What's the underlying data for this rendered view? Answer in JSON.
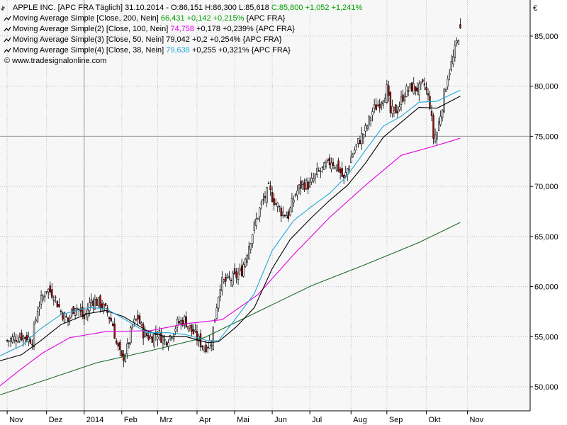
{
  "chart_data": {
    "type": "candlestick",
    "currency_label": "€",
    "grid": true,
    "legend_position": "top-left",
    "header": [
      {
        "text": "APPLE INC. [APC FRA  Täglich] 31.10.2014 - O:86,151 H:86,300 L:85,618 ",
        "accent": "C:85,800 +1,052 +1,241%",
        "accent_color": "#00a000",
        "tail": ""
      },
      {
        "text": "Moving Average Simple [Close, 200, Nein] ",
        "accent": "66,431 +0,142 +0,215%",
        "accent_color": "#00a000",
        "tail": " {APC FRA}"
      },
      {
        "text": "Moving Average Simple(2) [Close, 100, Nein] ",
        "accent": "74,758",
        "accent_color": "#e000e0",
        "tail": " +0,178 +0,239% {APC FRA}"
      },
      {
        "text": "Moving Average Simple(3) [Close, 50, Nein] ",
        "accent": "79,042",
        "accent_color": "#000000",
        "tail": " +0,2 +0,254% {APC FRA}"
      },
      {
        "text": "Moving Average Simple(4) [Close, 38, Nein] ",
        "accent": "79,638",
        "accent_color": "#20a8d8",
        "tail": " +0,255 +0,321% {APC FRA}"
      }
    ],
    "source": "© www.tradesignalonline.com",
    "y_axis": {
      "min": 47.6,
      "max": 88.6,
      "ticks": [
        50,
        55,
        60,
        65,
        70,
        75,
        80,
        85
      ],
      "tick_labels": [
        "50,000",
        "55,000",
        "60,000",
        "65,000",
        "70,000",
        "75,000",
        "80,000",
        "85,000"
      ]
    },
    "x_axis": {
      "range": [
        -4,
        292
      ],
      "ticks": [
        {
          "label": "Nov",
          "x": 0
        },
        {
          "label": "Dez",
          "x": 22
        },
        {
          "label": "2014",
          "x": 43
        },
        {
          "label": "Feb",
          "x": 64
        },
        {
          "label": "Mrz",
          "x": 84
        },
        {
          "label": "Apr",
          "x": 106
        },
        {
          "label": "Mai",
          "x": 127
        },
        {
          "label": "Jun",
          "x": 148
        },
        {
          "label": "Jul",
          "x": 169
        },
        {
          "label": "Aug",
          "x": 192
        },
        {
          "label": "Sep",
          "x": 212
        },
        {
          "label": "Okt",
          "x": 234
        },
        {
          "label": "Nov",
          "x": 257
        }
      ]
    },
    "price_anchors": [
      [
        0,
        54.6
      ],
      [
        8,
        55.1
      ],
      [
        14,
        54.7
      ],
      [
        17,
        57.8
      ],
      [
        22,
        59.8
      ],
      [
        26,
        59.2
      ],
      [
        30,
        57.5
      ],
      [
        34,
        56.6
      ],
      [
        38,
        58.2
      ],
      [
        43,
        56.8
      ],
      [
        47,
        58.7
      ],
      [
        52,
        58.3
      ],
      [
        56,
        57.4
      ],
      [
        59,
        56.2
      ],
      [
        61,
        54.3
      ],
      [
        64,
        52.7
      ],
      [
        67,
        53.8
      ],
      [
        70,
        56.1
      ],
      [
        73,
        56.9
      ],
      [
        76,
        55.4
      ],
      [
        80,
        54.9
      ],
      [
        84,
        55.4
      ],
      [
        88,
        54.6
      ],
      [
        91,
        55.1
      ],
      [
        95,
        56.3
      ],
      [
        99,
        56.7
      ],
      [
        103,
        55.6
      ],
      [
        107,
        54.6
      ],
      [
        110,
        53.9
      ],
      [
        114,
        54.6
      ],
      [
        117,
        58.2
      ],
      [
        119,
        60.3
      ],
      [
        123,
        60.6
      ],
      [
        127,
        60.9
      ],
      [
        131,
        61.6
      ],
      [
        135,
        64.2
      ],
      [
        139,
        66.6
      ],
      [
        142,
        68.2
      ],
      [
        146,
        69.7
      ],
      [
        149,
        68.6
      ],
      [
        153,
        67.5
      ],
      [
        157,
        67.1
      ],
      [
        161,
        69.3
      ],
      [
        165,
        70.3
      ],
      [
        169,
        70.1
      ],
      [
        173,
        71.3
      ],
      [
        177,
        71.8
      ],
      [
        181,
        72.6
      ],
      [
        185,
        71.8
      ],
      [
        188,
        70.6
      ],
      [
        192,
        72.9
      ],
      [
        196,
        74.4
      ],
      [
        200,
        75.6
      ],
      [
        204,
        77.5
      ],
      [
        208,
        78.4
      ],
      [
        212,
        79.7
      ],
      [
        214,
        77.3
      ],
      [
        218,
        77.7
      ],
      [
        222,
        79.4
      ],
      [
        226,
        79.9
      ],
      [
        230,
        79.7
      ],
      [
        233,
        80.1
      ],
      [
        236,
        78.2
      ],
      [
        238,
        74.9
      ],
      [
        240,
        75.4
      ],
      [
        243,
        78.2
      ],
      [
        246,
        81.1
      ],
      [
        249,
        82.8
      ],
      [
        251,
        84.3
      ],
      [
        253,
        85.8
      ]
    ],
    "series": [
      {
        "name": "Moving Average Simple [Close, 200, Nein]",
        "color": "#1a6b2a",
        "points": [
          [
            -4,
            49.2
          ],
          [
            20,
            50.6
          ],
          [
            50,
            52.4
          ],
          [
            80,
            53.6
          ],
          [
            110,
            54.9
          ],
          [
            140,
            57.5
          ],
          [
            170,
            60.1
          ],
          [
            200,
            62.2
          ],
          [
            230,
            64.4
          ],
          [
            253,
            66.4
          ]
        ]
      },
      {
        "name": "Moving Average Simple(2) [Close, 100, Nein]",
        "color": "#e000e0",
        "points": [
          [
            -4,
            50.1
          ],
          [
            8,
            51.8
          ],
          [
            20,
            53.4
          ],
          [
            35,
            54.9
          ],
          [
            55,
            55.5
          ],
          [
            80,
            55.6
          ],
          [
            100,
            56.3
          ],
          [
            120,
            56.7
          ],
          [
            140,
            59.2
          ],
          [
            160,
            63.2
          ],
          [
            180,
            66.9
          ],
          [
            200,
            70.1
          ],
          [
            220,
            73.1
          ],
          [
            240,
            74.1
          ],
          [
            253,
            74.8
          ]
        ]
      },
      {
        "name": "Moving Average Simple(3) [Close, 50, Nein]",
        "color": "#000000",
        "points": [
          [
            -4,
            52.6
          ],
          [
            8,
            53.2
          ],
          [
            18,
            54.5
          ],
          [
            30,
            56.2
          ],
          [
            45,
            57.3
          ],
          [
            55,
            57.6
          ],
          [
            65,
            57.0
          ],
          [
            78,
            55.6
          ],
          [
            88,
            55.0
          ],
          [
            100,
            55.0
          ],
          [
            112,
            54.4
          ],
          [
            118,
            54.5
          ],
          [
            128,
            56.0
          ],
          [
            138,
            57.9
          ],
          [
            148,
            61.8
          ],
          [
            158,
            64.7
          ],
          [
            170,
            66.9
          ],
          [
            180,
            68.6
          ],
          [
            190,
            70.1
          ],
          [
            200,
            72.3
          ],
          [
            210,
            74.9
          ],
          [
            220,
            76.4
          ],
          [
            230,
            77.9
          ],
          [
            240,
            77.8
          ],
          [
            253,
            79.0
          ]
        ]
      },
      {
        "name": "Moving Average Simple(4) [Close, 38, Nein]",
        "color": "#20a8d8",
        "points": [
          [
            -4,
            53.1
          ],
          [
            8,
            54.1
          ],
          [
            18,
            55.7
          ],
          [
            30,
            57.2
          ],
          [
            45,
            57.9
          ],
          [
            55,
            57.8
          ],
          [
            65,
            56.8
          ],
          [
            78,
            55.4
          ],
          [
            90,
            55.4
          ],
          [
            100,
            55.2
          ],
          [
            112,
            54.6
          ],
          [
            118,
            54.6
          ],
          [
            128,
            56.9
          ],
          [
            138,
            59.3
          ],
          [
            148,
            63.6
          ],
          [
            160,
            66.6
          ],
          [
            170,
            68.0
          ],
          [
            180,
            69.3
          ],
          [
            190,
            71.1
          ],
          [
            200,
            73.6
          ],
          [
            210,
            76.0
          ],
          [
            220,
            77.0
          ],
          [
            230,
            78.4
          ],
          [
            240,
            78.5
          ],
          [
            253,
            79.6
          ]
        ]
      }
    ]
  }
}
